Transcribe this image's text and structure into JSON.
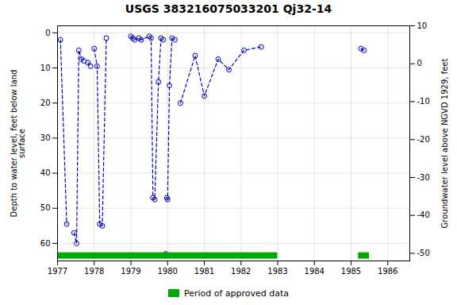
{
  "chart_data": {
    "type": "line",
    "title": "USGS 383216075033201 Qj32-14",
    "ylabel": "Depth to water level, feet below land\nsurface",
    "y2label": "Groundwater level above NGVD 1929, feet",
    "xlim": [
      1977.0,
      1986.6
    ],
    "xticks": [
      1977,
      1978,
      1979,
      1980,
      1981,
      1982,
      1983,
      1984,
      1985,
      1986
    ],
    "ylim": [
      65,
      -2
    ],
    "yticks": [
      0,
      10,
      20,
      30,
      40,
      50,
      60
    ],
    "y2lim": [
      -52,
      10
    ],
    "y2ticks": [
      10,
      0,
      -10,
      -20,
      -30,
      -40,
      -50
    ],
    "grid": true,
    "legend": "bottom",
    "x": [
      1977.08,
      1977.25,
      null,
      1977.45,
      1977.52,
      1977.58,
      1977.65,
      1977.72,
      null,
      1977.83,
      1977.9,
      null,
      1978.0,
      1978.08,
      1978.15,
      1978.22,
      1978.33,
      null,
      1979.0,
      1979.05,
      1979.1,
      1979.22,
      1979.28,
      1979.5,
      1979.55,
      1979.6,
      1979.65,
      1979.75,
      1979.82,
      1979.88,
      null,
      1979.95,
      null,
      1979.98,
      1980.0,
      1980.05,
      1980.12,
      1980.2,
      null,
      1980.35,
      1980.75,
      1981.0,
      1981.38,
      1981.67,
      1982.08,
      1982.55,
      null,
      1985.27,
      1985.35
    ],
    "series": [
      {
        "values": [
          2.0,
          54.5,
          null,
          57.0,
          60.0,
          5.0,
          7.5,
          8.0,
          null,
          8.5,
          9.5,
          null,
          4.5,
          9.5,
          54.5,
          55.0,
          1.5,
          null,
          1.0,
          1.5,
          2.0,
          1.5,
          2.0,
          1.0,
          1.5,
          47.0,
          47.5,
          14.0,
          1.5,
          2.0,
          null,
          63.0,
          null,
          47.0,
          47.5,
          15.0,
          1.5,
          2.0,
          null,
          20.0,
          6.5,
          18.0,
          7.5,
          10.5,
          5.0,
          4.0,
          null,
          4.5,
          5.0
        ],
        "color": "#0000bb",
        "marker": "o",
        "line_style": "dashed"
      }
    ],
    "approved_periods": {
      "name": "Period of approved data",
      "color": "#00aa00",
      "periods": [
        [
          1977.0,
          1983.0
        ],
        [
          1985.2,
          1985.5
        ]
      ]
    }
  }
}
